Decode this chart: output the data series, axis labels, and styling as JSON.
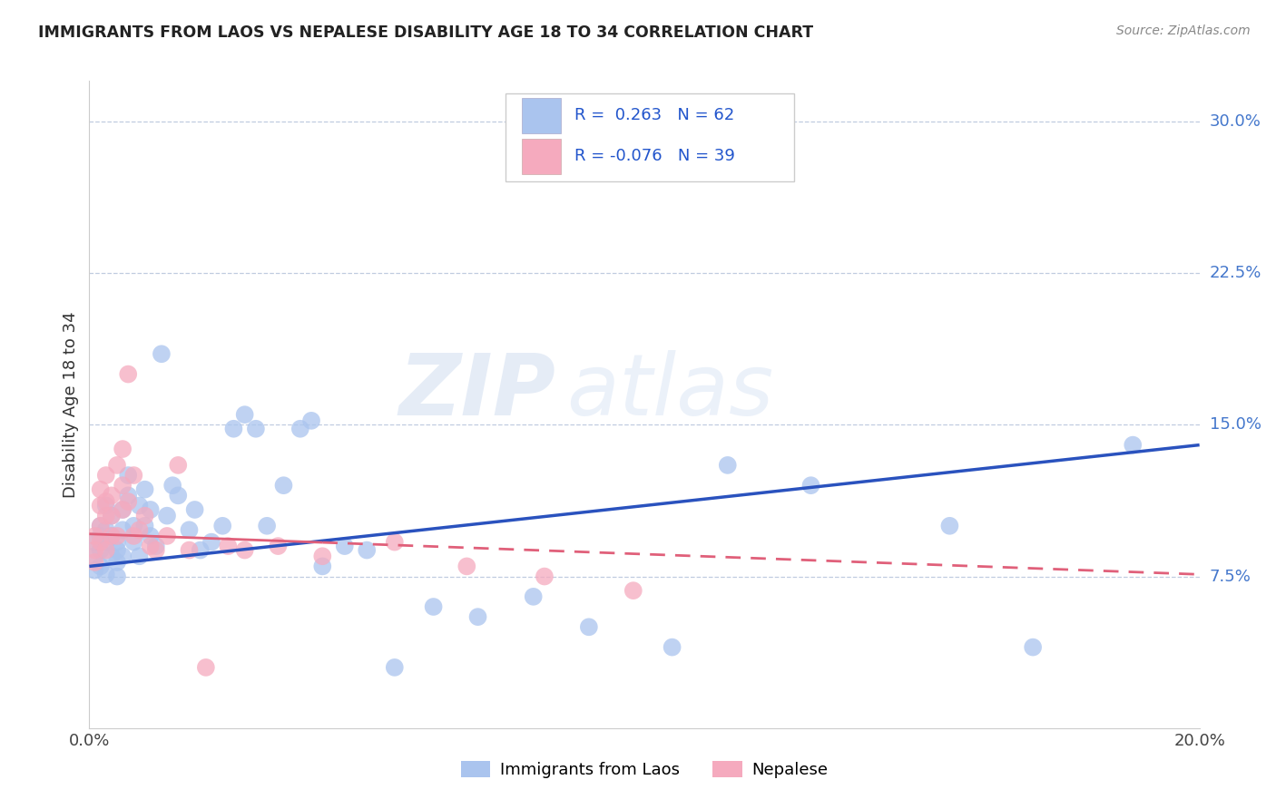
{
  "title": "IMMIGRANTS FROM LAOS VS NEPALESE DISABILITY AGE 18 TO 34 CORRELATION CHART",
  "source": "Source: ZipAtlas.com",
  "ylabel": "Disability Age 18 to 34",
  "xlim": [
    0.0,
    0.2
  ],
  "ylim": [
    0.0,
    0.32
  ],
  "yticks_right": [
    0.075,
    0.15,
    0.225,
    0.3
  ],
  "yticklabels_right": [
    "7.5%",
    "15.0%",
    "22.5%",
    "30.0%"
  ],
  "blue_R": 0.263,
  "blue_N": 62,
  "pink_R": -0.076,
  "pink_N": 39,
  "blue_color": "#aac4ee",
  "pink_color": "#f5aabe",
  "blue_line_color": "#2a52be",
  "pink_line_color": "#e0607a",
  "legend_label_blue": "Immigrants from Laos",
  "legend_label_pink": "Nepalese",
  "watermark_zip": "ZIP",
  "watermark_atlas": "atlas",
  "blue_x": [
    0.001,
    0.001,
    0.001,
    0.002,
    0.002,
    0.002,
    0.002,
    0.003,
    0.003,
    0.003,
    0.003,
    0.004,
    0.004,
    0.004,
    0.005,
    0.005,
    0.005,
    0.005,
    0.006,
    0.006,
    0.006,
    0.007,
    0.007,
    0.008,
    0.008,
    0.009,
    0.009,
    0.01,
    0.01,
    0.011,
    0.011,
    0.012,
    0.013,
    0.014,
    0.015,
    0.016,
    0.018,
    0.019,
    0.02,
    0.022,
    0.024,
    0.026,
    0.028,
    0.03,
    0.032,
    0.035,
    0.038,
    0.04,
    0.042,
    0.046,
    0.05,
    0.055,
    0.062,
    0.07,
    0.08,
    0.09,
    0.105,
    0.115,
    0.13,
    0.155,
    0.17,
    0.188
  ],
  "blue_y": [
    0.085,
    0.092,
    0.078,
    0.095,
    0.088,
    0.08,
    0.1,
    0.092,
    0.11,
    0.076,
    0.098,
    0.085,
    0.095,
    0.105,
    0.088,
    0.075,
    0.092,
    0.082,
    0.098,
    0.108,
    0.085,
    0.115,
    0.125,
    0.1,
    0.092,
    0.11,
    0.085,
    0.1,
    0.118,
    0.108,
    0.095,
    0.09,
    0.185,
    0.105,
    0.12,
    0.115,
    0.098,
    0.108,
    0.088,
    0.092,
    0.1,
    0.148,
    0.155,
    0.148,
    0.1,
    0.12,
    0.148,
    0.152,
    0.08,
    0.09,
    0.088,
    0.03,
    0.06,
    0.055,
    0.065,
    0.05,
    0.04,
    0.13,
    0.12,
    0.1,
    0.04,
    0.14
  ],
  "pink_x": [
    0.001,
    0.001,
    0.001,
    0.002,
    0.002,
    0.002,
    0.002,
    0.003,
    0.003,
    0.003,
    0.003,
    0.004,
    0.004,
    0.004,
    0.005,
    0.005,
    0.006,
    0.006,
    0.006,
    0.007,
    0.007,
    0.008,
    0.008,
    0.009,
    0.01,
    0.011,
    0.012,
    0.014,
    0.016,
    0.018,
    0.021,
    0.025,
    0.028,
    0.034,
    0.042,
    0.055,
    0.068,
    0.082,
    0.098
  ],
  "pink_y": [
    0.088,
    0.095,
    0.082,
    0.1,
    0.11,
    0.092,
    0.118,
    0.105,
    0.112,
    0.088,
    0.125,
    0.095,
    0.115,
    0.105,
    0.13,
    0.095,
    0.12,
    0.108,
    0.138,
    0.112,
    0.175,
    0.125,
    0.095,
    0.098,
    0.105,
    0.09,
    0.088,
    0.095,
    0.13,
    0.088,
    0.03,
    0.09,
    0.088,
    0.09,
    0.085,
    0.092,
    0.08,
    0.075,
    0.068
  ],
  "blue_line_start_y": 0.08,
  "blue_line_end_y": 0.14,
  "pink_line_start_y": 0.096,
  "pink_line_end_y": 0.076
}
